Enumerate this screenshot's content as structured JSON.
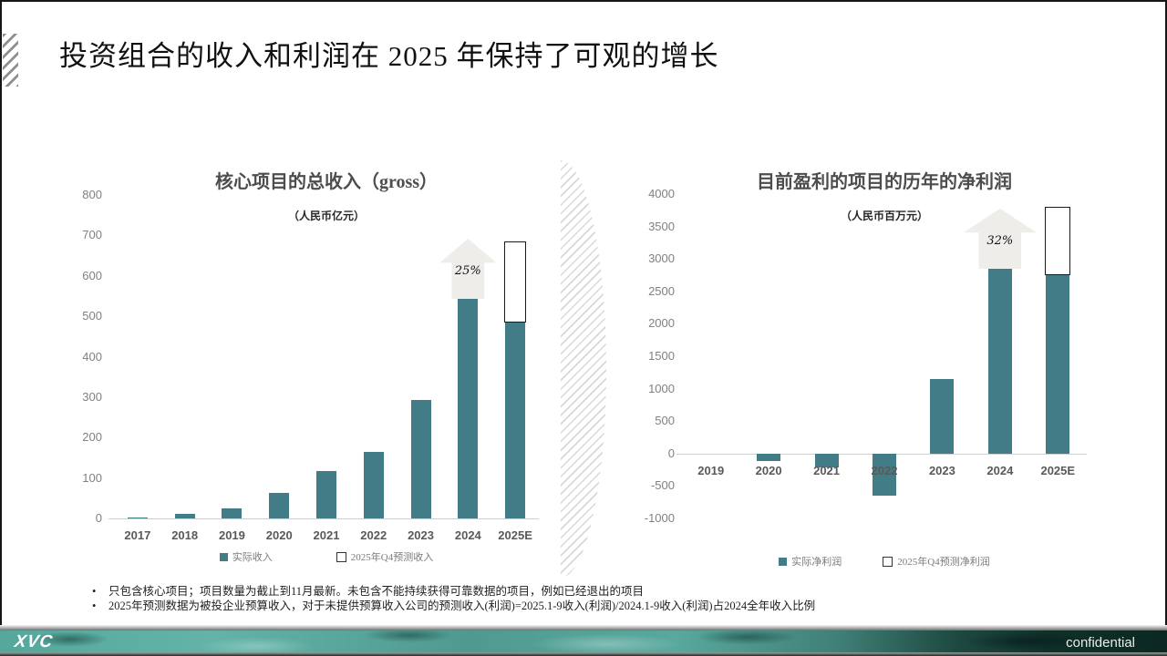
{
  "slide": {
    "title": "投资组合的收入和利润在 2025 年保持了可观的增长",
    "footnotes": [
      "只包含核心项目；项目数量为截止到11月最新。未包含不能持续获得可靠数据的项目，例如已经退出的项目",
      "2025年预测数据为被投企业预算收入，对于未提供预算收入公司的预测收入(利润)=2025.1-9收入(利润)/2024.1-9收入(利润)占2024全年收入比例"
    ],
    "footer": {
      "logo": "XVC",
      "confidential": "confidential"
    }
  },
  "colors": {
    "actual_bar": "#417C87",
    "forecast_bar_fill": "#ffffff",
    "forecast_bar_border": "#1a1a1a",
    "arrow_fill": "#efedea",
    "footer_teal": "#4f9a90"
  },
  "chart_data": [
    {
      "type": "bar",
      "title": "核心项目的总收入（gross）",
      "subtitle": "（人民币亿元）",
      "categories": [
        "2017",
        "2018",
        "2019",
        "2020",
        "2021",
        "2022",
        "2023",
        "2024",
        "2025E"
      ],
      "series": [
        {
          "name": "实际收入",
          "color": "#417C87",
          "values": [
            3,
            12,
            25,
            63,
            117,
            164,
            293,
            543,
            485
          ]
        },
        {
          "name": "2025年Q4预测收入",
          "style": "forecast-outline",
          "values": [
            null,
            null,
            null,
            null,
            null,
            null,
            null,
            null,
            200
          ]
        }
      ],
      "ylim": [
        0,
        800
      ],
      "ytick_step": 100,
      "grid": false,
      "legend_position": "bottom",
      "legend": [
        "实际收入",
        "2025年Q4预测收入"
      ],
      "annotation": {
        "label": "25%",
        "category": "2024"
      }
    },
    {
      "type": "bar",
      "title": "目前盈利的项目的历年的净利润",
      "subtitle": "（人民币百万元）",
      "categories": [
        "2019",
        "2020",
        "2021",
        "2022",
        "2023",
        "2024",
        "2025E"
      ],
      "series": [
        {
          "name": "实际净利润",
          "color": "#417C87",
          "values": [
            0,
            -115,
            -215,
            -655,
            1150,
            2850,
            2750
          ]
        },
        {
          "name": "2025年Q4预测净利润",
          "style": "forecast-outline",
          "values": [
            null,
            null,
            null,
            null,
            null,
            null,
            1050
          ]
        }
      ],
      "ylim": [
        -1000,
        4000
      ],
      "ytick_step": 500,
      "grid": false,
      "legend_position": "bottom",
      "legend": [
        "实际净利润",
        "2025年Q4预测净利润"
      ],
      "annotation": {
        "label": "32%",
        "category": "2024"
      }
    }
  ]
}
